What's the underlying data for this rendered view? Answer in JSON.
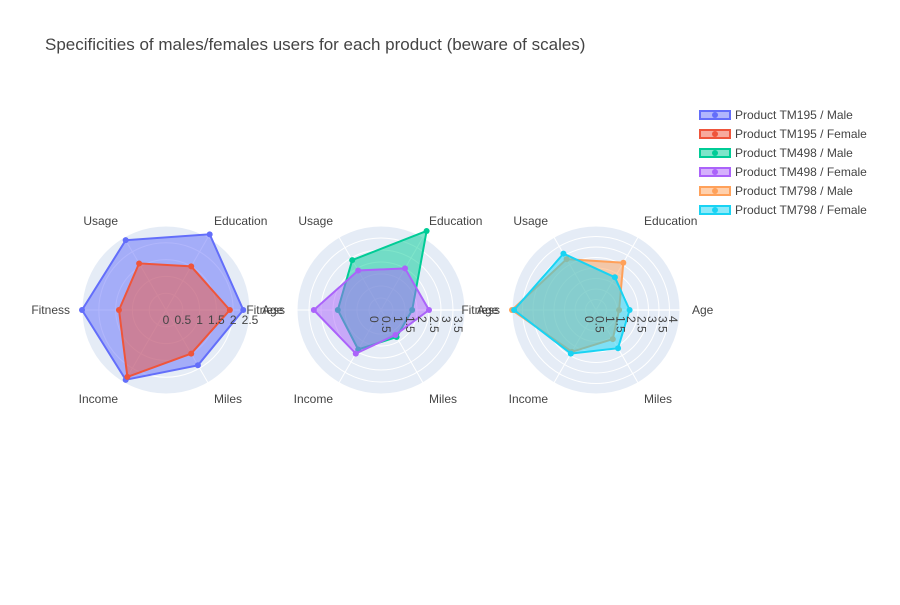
{
  "chart_data": {
    "type": "radar",
    "title": "Specificities of males/females users for each product (beware of scales)",
    "legend": {
      "placement": "top-right",
      "entries": [
        "Product TM195 / Male",
        "Product TM195 / Female",
        "Product TM498 / Male",
        "Product TM498 / Female",
        "Product TM798 / Male",
        "Product TM798 / Female"
      ]
    },
    "axes": [
      "Age",
      "Education",
      "Usage",
      "Fitness",
      "Income",
      "Miles"
    ],
    "subplots": [
      {
        "radial_range": [
          0,
          2.5
        ],
        "tick_labels": [
          "0",
          "0.5",
          "1",
          "1.5",
          "2",
          "2.5"
        ],
        "series": [
          {
            "name": "Product TM195 / Male",
            "color": "#636efa",
            "values": [
              2.3,
              2.6,
              2.4,
              2.5,
              2.4,
              1.9
            ]
          },
          {
            "name": "Product TM195 / Female",
            "color": "#ef553b",
            "values": [
              1.9,
              1.5,
              1.6,
              1.4,
              2.3,
              1.5
            ]
          }
        ]
      },
      {
        "radial_range": [
          0,
          3.5
        ],
        "tick_labels": [
          "0",
          "0.5",
          "1",
          "1.5",
          "2",
          "2.5",
          "3",
          "3.5"
        ],
        "series": [
          {
            "name": "Product TM498 / Male",
            "color": "#00cc96",
            "values": [
              1.3,
              3.8,
              2.4,
              1.8,
              1.9,
              1.3
            ]
          },
          {
            "name": "Product TM498 / Female",
            "color": "#ab63fa",
            "values": [
              2.0,
              2.0,
              1.9,
              2.8,
              2.1,
              1.2
            ]
          }
        ]
      },
      {
        "radial_range": [
          0,
          4
        ],
        "tick_labels": [
          "0",
          "0.5",
          "1",
          "1.5",
          "2",
          "2.5",
          "3",
          "3.5",
          "4"
        ],
        "series": [
          {
            "name": "Product TM798 / Male",
            "color": "#ffa15a",
            "values": [
              1.1,
              2.6,
              2.8,
              4.0,
              2.3,
              1.6
            ]
          },
          {
            "name": "Product TM798 / Female",
            "color": "#19d3f3",
            "values": [
              1.6,
              1.8,
              3.1,
              3.9,
              2.4,
              2.1
            ]
          }
        ]
      }
    ]
  }
}
